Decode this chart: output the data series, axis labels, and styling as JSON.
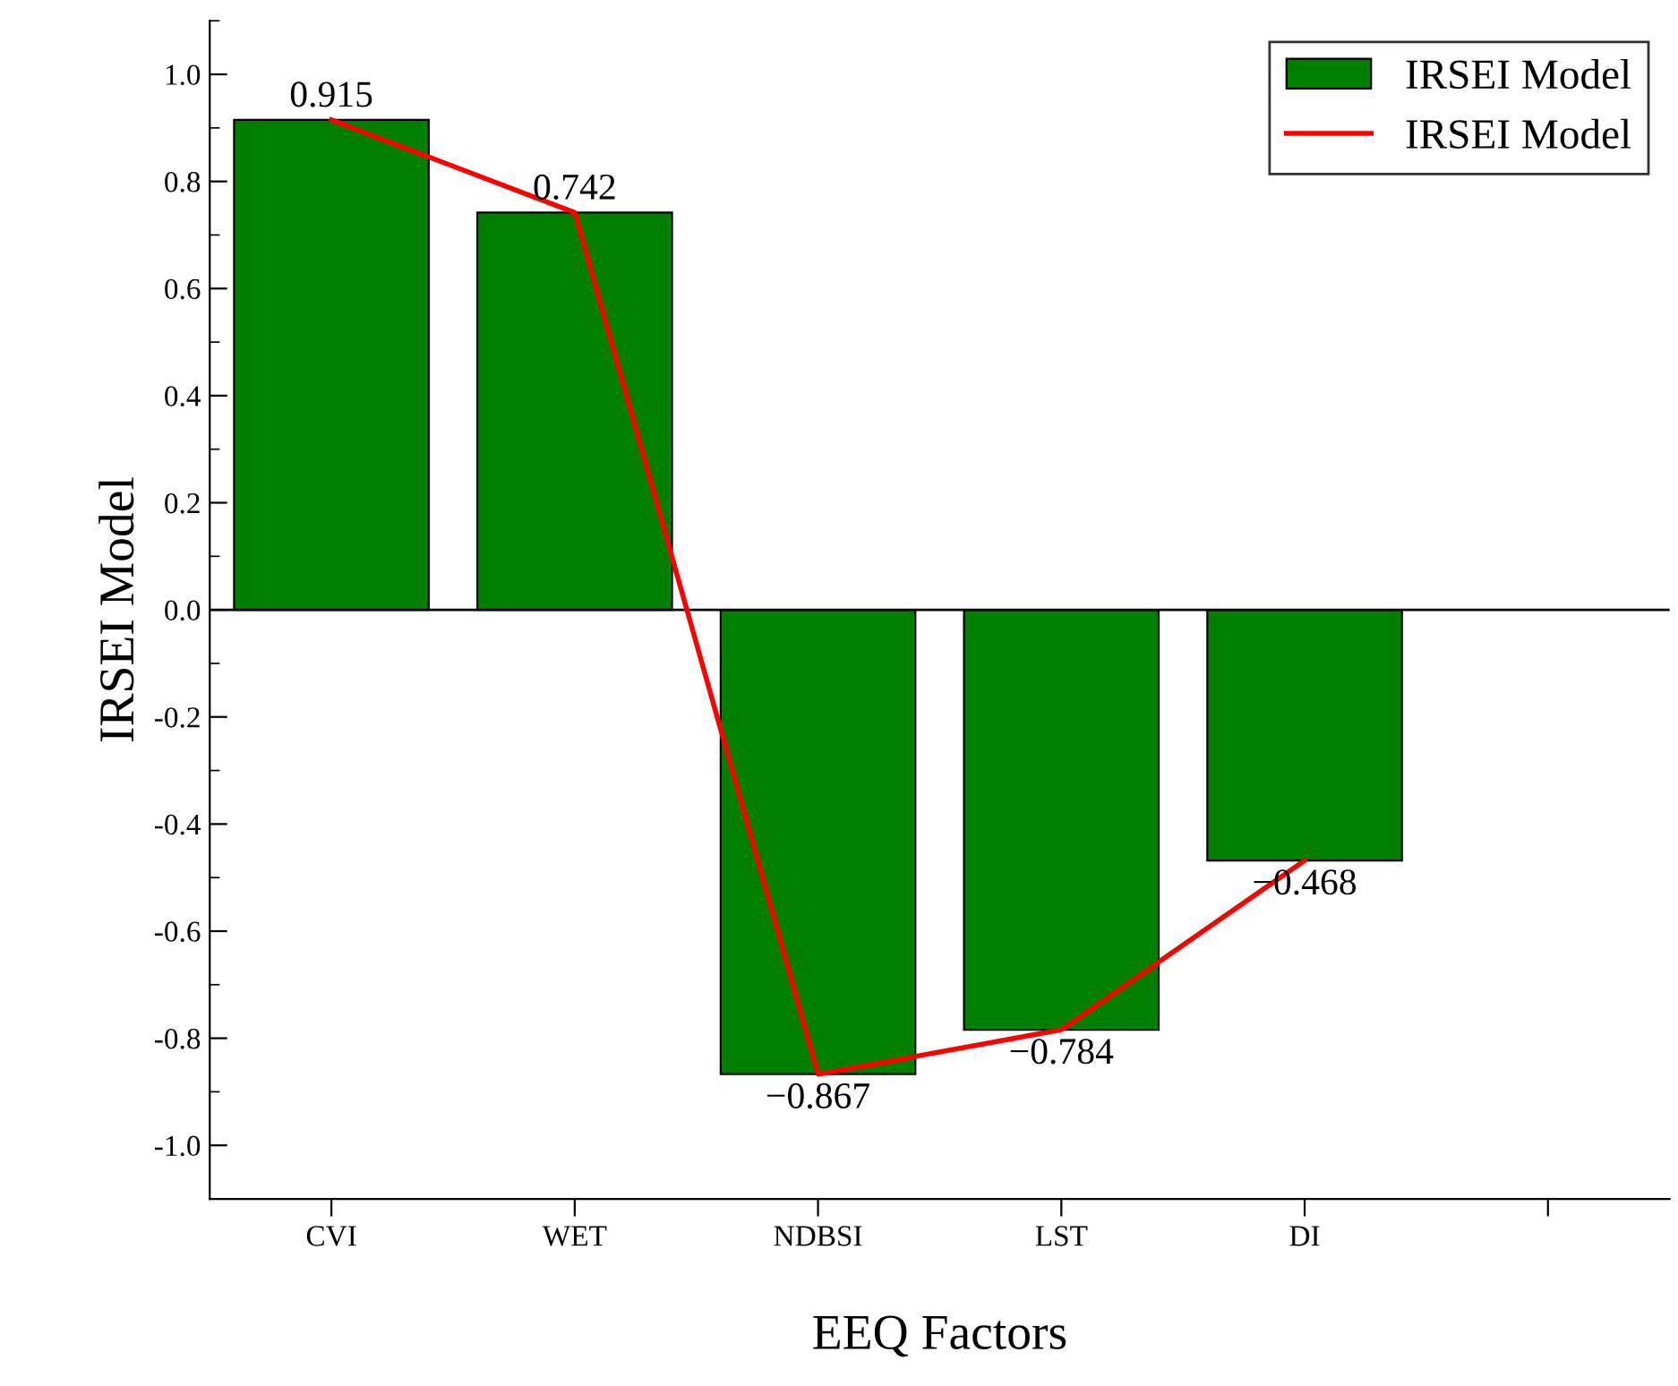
{
  "chart_data": {
    "type": "bar",
    "xlabel": "EEQ Factors",
    "ylabel": "IRSEI Model",
    "categories": [
      "CVI",
      "WET",
      "NDBSI",
      "LST",
      "DI",
      null
    ],
    "series": [
      {
        "name": "IRSEI Model",
        "color": "#007f00",
        "values": [
          0.915,
          0.742,
          -0.867,
          -0.784,
          -0.468,
          null
        ],
        "value_labels": [
          "0.915",
          "0.742",
          "−0.867",
          "−0.784",
          "−0.468",
          null
        ]
      },
      {
        "name": "IRSEI Model",
        "type": "line",
        "color": "#ff0000",
        "values": [
          0.915,
          0.742,
          -0.867,
          -0.784,
          -0.468,
          null
        ]
      }
    ],
    "ylim": [
      -1.1,
      1.1
    ],
    "yticks": [
      {
        "value": -1.0,
        "label": "-1.0"
      },
      -0.8,
      -0.6,
      -0.4,
      -0.2,
      {
        "value": 0.0,
        "label": "0.0"
      },
      0.2,
      0.4,
      0.6,
      0.8,
      {
        "value": 1.0,
        "label": "1.0"
      }
    ],
    "ref_lines": [
      {
        "axis": "y",
        "value": 0,
        "label": null,
        "color": "#000000",
        "line_style": "solid"
      }
    ],
    "legend": "top right",
    "grid": false
  }
}
